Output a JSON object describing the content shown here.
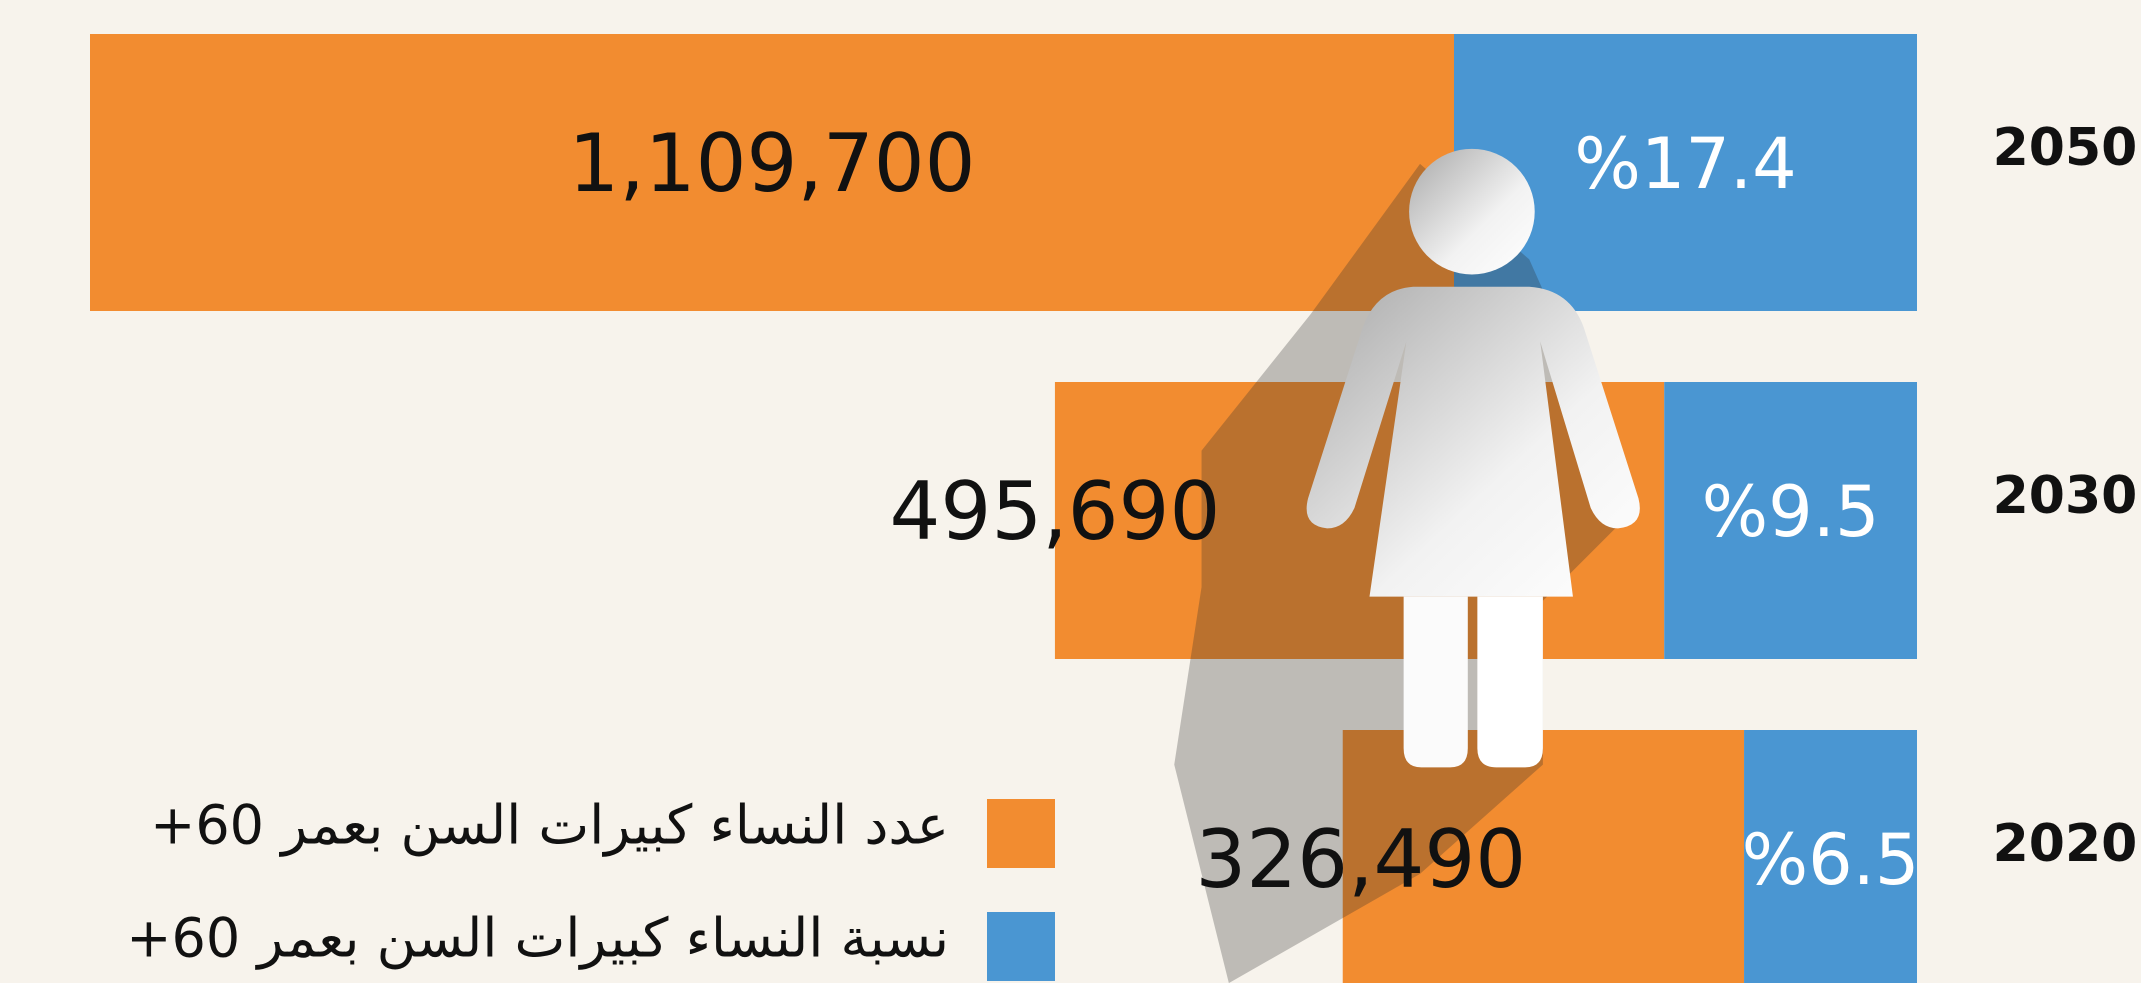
{
  "chart_data": {
    "type": "bar",
    "orientation": "horizontal",
    "categories": [
      "2050",
      "2030",
      "2020"
    ],
    "series": [
      {
        "name": "عدد النساء كبيرات السن بعمر 60+",
        "color": "#f28c30",
        "values": [
          1109700,
          495690,
          326490
        ],
        "value_labels": [
          "1,109,700",
          "495,690",
          "326,490"
        ]
      },
      {
        "name": "نسبة النساء كبيرات السن بعمر 60+",
        "color": "#4a96d2",
        "values": [
          17.4,
          9.5,
          6.5
        ],
        "value_labels": [
          "%17.4",
          "%9.5",
          "%6.5"
        ]
      }
    ],
    "legend": "bottom-left"
  }
}
